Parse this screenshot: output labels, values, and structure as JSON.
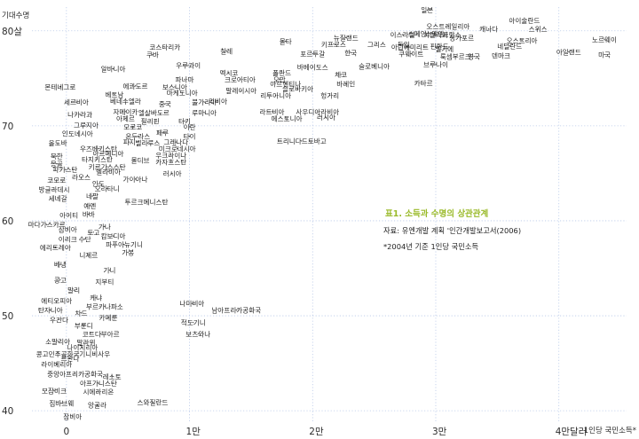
{
  "chart_data": {
    "type": "scatter",
    "title": "표1. 소득과 수명의 상관관계",
    "source": "자료: 유엔개발 계획 '인간개발보고서(2006)",
    "note": "*2004년 기준 1인당 국민소득",
    "ylabel": "기대수명",
    "xlabel": "1인당 국민소득*",
    "xlim": [
      -2800,
      45500
    ],
    "ylim": [
      38.8,
      82.5
    ],
    "grid": true,
    "accent_color": "#9aba2a",
    "grid_color": "#b9c9e8",
    "xticks": [
      {
        "value": 0,
        "label": "0"
      },
      {
        "value": 10000,
        "label": "1만"
      },
      {
        "value": 20000,
        "label": "2만"
      },
      {
        "value": 30000,
        "label": "3만"
      },
      {
        "value": 40000,
        "label": "4만달러"
      }
    ],
    "yticks": [
      {
        "value": 40,
        "label": "40"
      },
      {
        "value": 50,
        "label": "50"
      },
      {
        "value": 60,
        "label": "60"
      },
      {
        "value": 70,
        "label": "70"
      },
      {
        "value": 80,
        "label": "80살"
      }
    ],
    "points": [
      {
        "label": "일본",
        "x": 29300,
        "y": 82.2
      },
      {
        "label": "오스트레일리아",
        "x": 31000,
        "y": 80.5
      },
      {
        "label": "아이슬란드",
        "x": 37200,
        "y": 81.1
      },
      {
        "label": "스페인",
        "x": 28500,
        "y": 79.7
      },
      {
        "label": "스웨덴",
        "x": 29900,
        "y": 79.7
      },
      {
        "label": "캐나다",
        "x": 34300,
        "y": 80.2
      },
      {
        "label": "스위스",
        "x": 38300,
        "y": 80.2
      },
      {
        "label": "이스라엘",
        "x": 27300,
        "y": 79.6
      },
      {
        "label": "이탈리아",
        "x": 30000,
        "y": 79.6
      },
      {
        "label": "프랑스",
        "x": 31300,
        "y": 79.6
      },
      {
        "label": "뉴질랜드",
        "x": 22700,
        "y": 79.3
      },
      {
        "label": "싱가포르",
        "x": 32100,
        "y": 79.3
      },
      {
        "label": "오스트리아",
        "x": 37000,
        "y": 79.0
      },
      {
        "label": "노르웨이",
        "x": 43700,
        "y": 79.1
      },
      {
        "label": "몰타",
        "x": 17800,
        "y": 78.9
      },
      {
        "label": "키프로스",
        "x": 21700,
        "y": 78.6
      },
      {
        "label": "그리스",
        "x": 25200,
        "y": 78.6
      },
      {
        "label": "독일",
        "x": 27400,
        "y": 78.6
      },
      {
        "label": "핀란드",
        "x": 30300,
        "y": 78.4
      },
      {
        "label": "네덜란드",
        "x": 36000,
        "y": 78.4
      },
      {
        "label": "아랍에미리트",
        "x": 27900,
        "y": 78.3
      },
      {
        "label": "벨기에",
        "x": 30700,
        "y": 78.1
      },
      {
        "label": "아일랜드",
        "x": 40800,
        "y": 77.8
      },
      {
        "label": "미국",
        "x": 43700,
        "y": 77.5
      },
      {
        "label": "칠레",
        "x": 13000,
        "y": 77.9
      },
      {
        "label": "포르투갈",
        "x": 20000,
        "y": 77.6
      },
      {
        "label": "한국",
        "x": 23100,
        "y": 77.7
      },
      {
        "label": "쿠웨이트",
        "x": 28000,
        "y": 77.6
      },
      {
        "label": "룩셈부르크",
        "x": 31600,
        "y": 77.3
      },
      {
        "label": "영국",
        "x": 33100,
        "y": 77.3
      },
      {
        "label": "덴마크",
        "x": 35300,
        "y": 77.4
      },
      {
        "label": "코스타리카",
        "x": 8000,
        "y": 78.3
      },
      {
        "label": "쿠바",
        "x": 7000,
        "y": 77.5
      },
      {
        "label": "바베이도스",
        "x": 20000,
        "y": 76.2
      },
      {
        "label": "슬로베니아",
        "x": 25000,
        "y": 76.3
      },
      {
        "label": "브루나이",
        "x": 30000,
        "y": 76.5
      },
      {
        "label": "우루과이",
        "x": 9900,
        "y": 76.4
      },
      {
        "label": "멕시코",
        "x": 13200,
        "y": 75.6
      },
      {
        "label": "폴란드",
        "x": 17500,
        "y": 75.6
      },
      {
        "label": "오만",
        "x": 17300,
        "y": 74.9
      },
      {
        "label": "체코",
        "x": 22300,
        "y": 75.4
      },
      {
        "label": "카타르",
        "x": 29000,
        "y": 74.5
      },
      {
        "label": "알바니아",
        "x": 3800,
        "y": 76.0
      },
      {
        "label": "파나마",
        "x": 9600,
        "y": 74.9
      },
      {
        "label": "크로아티아",
        "x": 14100,
        "y": 74.9
      },
      {
        "label": "아르헨티나",
        "x": 17800,
        "y": 74.4
      },
      {
        "label": "바레인",
        "x": 22700,
        "y": 74.4
      },
      {
        "label": "에콰도르",
        "x": 5600,
        "y": 74.2
      },
      {
        "label": "보스니아",
        "x": 8800,
        "y": 74.1
      },
      {
        "label": "말레이시아",
        "x": 14200,
        "y": 73.7
      },
      {
        "label": "슬로바키아",
        "x": 18800,
        "y": 73.9
      },
      {
        "label": "몬테네그로",
        "x": -500,
        "y": 74.1
      },
      {
        "label": "베트남",
        "x": 3900,
        "y": 73.3
      },
      {
        "label": "마케도니아",
        "x": 9400,
        "y": 73.5
      },
      {
        "label": "리투아니아",
        "x": 17000,
        "y": 73.2
      },
      {
        "label": "헝가리",
        "x": 21400,
        "y": 73.2
      },
      {
        "label": "베네수엘라",
        "x": 4800,
        "y": 72.6
      },
      {
        "label": "중국",
        "x": 8000,
        "y": 72.3
      },
      {
        "label": "리비아",
        "x": 12300,
        "y": 72.6
      },
      {
        "label": "세르비아",
        "x": 800,
        "y": 72.5
      },
      {
        "label": "불가리아",
        "x": 11200,
        "y": 72.5
      },
      {
        "label": "자메이카",
        "x": 4800,
        "y": 71.5
      },
      {
        "label": "엘살바도르",
        "x": 7100,
        "y": 71.4
      },
      {
        "label": "루마니아",
        "x": 11200,
        "y": 71.4
      },
      {
        "label": "라트비아",
        "x": 16700,
        "y": 71.5
      },
      {
        "label": "사우디아라비아",
        "x": 20400,
        "y": 71.5
      },
      {
        "label": "나카라과",
        "x": 1100,
        "y": 71.2
      },
      {
        "label": "아제르",
        "x": 4800,
        "y": 70.8
      },
      {
        "label": "필리핀",
        "x": 6800,
        "y": 70.5
      },
      {
        "label": "터키",
        "x": 9600,
        "y": 70.5
      },
      {
        "label": "에스토니아",
        "x": 17900,
        "y": 70.8
      },
      {
        "label": "러시아",
        "x": 21100,
        "y": 70.9
      },
      {
        "label": "그루지아",
        "x": 1600,
        "y": 70.1
      },
      {
        "label": "모로코",
        "x": 5400,
        "y": 69.9
      },
      {
        "label": "이란",
        "x": 10000,
        "y": 69.9
      },
      {
        "label": "페루",
        "x": 7800,
        "y": 69.3
      },
      {
        "label": "인도네시아",
        "x": 900,
        "y": 69.2
      },
      {
        "label": "온두라스",
        "x": 5800,
        "y": 68.9
      },
      {
        "label": "타이",
        "x": 10000,
        "y": 68.9
      },
      {
        "label": "트리니다드토바고",
        "x": 19100,
        "y": 68.4
      },
      {
        "label": "피지",
        "x": 5100,
        "y": 68.3
      },
      {
        "label": "그레나다",
        "x": 8900,
        "y": 68.3
      },
      {
        "label": "벨리루스",
        "x": 6600,
        "y": 68.2
      },
      {
        "label": "올도바",
        "x": -700,
        "y": 68.2
      },
      {
        "label": "우즈베키스탄",
        "x": 2600,
        "y": 67.6
      },
      {
        "label": "미크로네시아",
        "x": 9000,
        "y": 67.6
      },
      {
        "label": "아르메니아",
        "x": 3400,
        "y": 67.1
      },
      {
        "label": "우크라이나",
        "x": 8500,
        "y": 66.9
      },
      {
        "label": "북한",
        "x": -800,
        "y": 66.8
      },
      {
        "label": "타지키스탄",
        "x": 2500,
        "y": 66.5
      },
      {
        "label": "몰디브",
        "x": 6000,
        "y": 66.4
      },
      {
        "label": "카자흐스탄",
        "x": 8500,
        "y": 66.2
      },
      {
        "label": "몽골",
        "x": -800,
        "y": 66.0
      },
      {
        "label": "키르기스스탄",
        "x": 3300,
        "y": 65.7
      },
      {
        "label": "파키스탄",
        "x": -100,
        "y": 65.4
      },
      {
        "label": "벨리비아",
        "x": 3400,
        "y": 65.2
      },
      {
        "label": "러시아",
        "x": 8600,
        "y": 65.0
      },
      {
        "label": "라오스",
        "x": 1200,
        "y": 64.6
      },
      {
        "label": "가이아나",
        "x": 5600,
        "y": 64.4
      },
      {
        "label": "코모로",
        "x": -800,
        "y": 64.3
      },
      {
        "label": "인도",
        "x": 2600,
        "y": 63.9
      },
      {
        "label": "오리타니",
        "x": 3300,
        "y": 63.4
      },
      {
        "label": "방글라데시",
        "x": -1000,
        "y": 63.3
      },
      {
        "label": "세네갈",
        "x": -700,
        "y": 62.4
      },
      {
        "label": "네팔",
        "x": 2100,
        "y": 62.6
      },
      {
        "label": "투르크메니스탄",
        "x": 6500,
        "y": 62.0
      },
      {
        "label": "예멘",
        "x": 1900,
        "y": 61.6
      },
      {
        "label": "아이티",
        "x": 200,
        "y": 60.6
      },
      {
        "label": "바바",
        "x": 1800,
        "y": 60.7
      },
      {
        "label": "마다가스카르",
        "x": -1600,
        "y": 59.6
      },
      {
        "label": "잠비아",
        "x": 100,
        "y": 59.1
      },
      {
        "label": "가나",
        "x": 3100,
        "y": 59.4
      },
      {
        "label": "토고",
        "x": 2200,
        "y": 58.8
      },
      {
        "label": "캄보디아",
        "x": 3800,
        "y": 58.4
      },
      {
        "label": "이리크",
        "x": 100,
        "y": 58.1
      },
      {
        "label": "수단",
        "x": 1500,
        "y": 58.1
      },
      {
        "label": "파푸아뉴기니",
        "x": 4700,
        "y": 57.5
      },
      {
        "label": "에리트레아",
        "x": -900,
        "y": 57.2
      },
      {
        "label": "가봉",
        "x": 5000,
        "y": 56.7
      },
      {
        "label": "니제르",
        "x": 1800,
        "y": 56.4
      },
      {
        "label": "베냉",
        "x": -500,
        "y": 55.4
      },
      {
        "label": "기니",
        "x": 3500,
        "y": 54.8
      },
      {
        "label": "콩고",
        "x": -500,
        "y": 53.8
      },
      {
        "label": "지부티",
        "x": 3100,
        "y": 53.6
      },
      {
        "label": "말리",
        "x": 600,
        "y": 52.7
      },
      {
        "label": "에티오피아",
        "x": -800,
        "y": 51.6
      },
      {
        "label": "케냐",
        "x": 2400,
        "y": 51.9
      },
      {
        "label": "나미비아",
        "x": 10200,
        "y": 51.3
      },
      {
        "label": "탄자니아",
        "x": -1300,
        "y": 50.6
      },
      {
        "label": "부르키나파소",
        "x": 3100,
        "y": 51.0
      },
      {
        "label": "남아프리카공화국",
        "x": 13800,
        "y": 50.6
      },
      {
        "label": "차드",
        "x": 1200,
        "y": 50.3
      },
      {
        "label": "우간다",
        "x": -600,
        "y": 49.6
      },
      {
        "label": "카메룬",
        "x": 3400,
        "y": 49.8
      },
      {
        "label": "적도기니",
        "x": 10300,
        "y": 49.3
      },
      {
        "label": "부룬디",
        "x": 1400,
        "y": 49.0
      },
      {
        "label": "코트디부아르",
        "x": 2800,
        "y": 48.1
      },
      {
        "label": "보츠와나",
        "x": 10700,
        "y": 48.1
      },
      {
        "label": "소말리아",
        "x": -700,
        "y": 47.3
      },
      {
        "label": "말라위",
        "x": 1600,
        "y": 47.2
      },
      {
        "label": "나이지리아",
        "x": 1300,
        "y": 46.7
      },
      {
        "label": "콩고민주공화국",
        "x": -700,
        "y": 46.0
      },
      {
        "label": "기니비사우",
        "x": 2300,
        "y": 46.0
      },
      {
        "label": "르완다",
        "x": 300,
        "y": 45.5
      },
      {
        "label": "라이베리아",
        "x": -800,
        "y": 44.9
      },
      {
        "label": "중앙아프리카공화국",
        "x": 700,
        "y": 43.9
      },
      {
        "label": "레소토",
        "x": 3700,
        "y": 43.6
      },
      {
        "label": "아프가니스탄",
        "x": 2600,
        "y": 42.9
      },
      {
        "label": "모잠비크",
        "x": -1000,
        "y": 42.1
      },
      {
        "label": "시에라리온",
        "x": 2600,
        "y": 42.0
      },
      {
        "label": "짐바브웨",
        "x": -400,
        "y": 40.8
      },
      {
        "label": "앙골라",
        "x": 2500,
        "y": 40.6
      },
      {
        "label": "스와질란드",
        "x": 7000,
        "y": 40.9
      },
      {
        "label": "잠비아",
        "x": 500,
        "y": 39.4
      }
    ]
  }
}
